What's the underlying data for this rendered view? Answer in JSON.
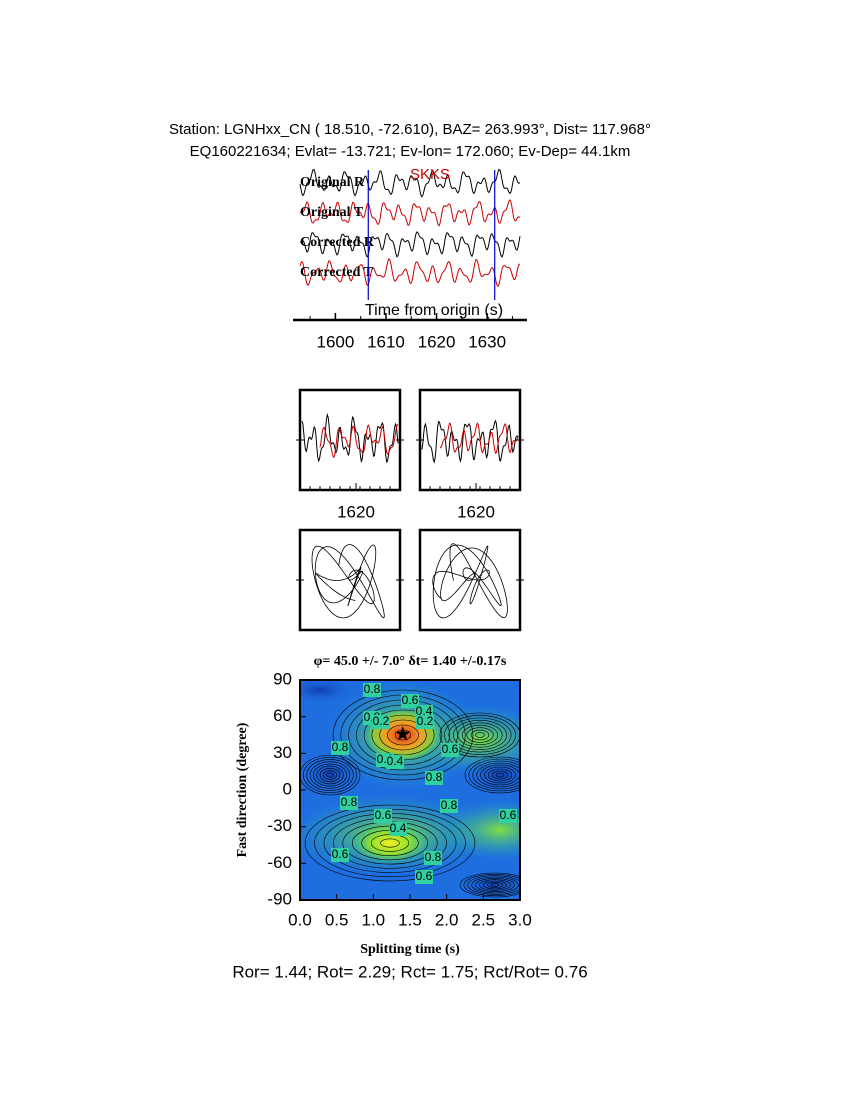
{
  "header": {
    "line1": "Station: LGNHxx_CN (  18.510,  -72.610), BAZ=  263.993°, Dist=  117.968°",
    "line2": "EQ160221634; Evlat= -13.721; Ev-lon= 172.060; Ev-Dep= 44.1km"
  },
  "chart_data": [
    {
      "type": "seismogram",
      "phase_label": "SKKS",
      "x_label": "Time from origin (s)",
      "traces": [
        {
          "name": "Original R",
          "color": "#000000"
        },
        {
          "name": "Original T",
          "color": "#cc0000"
        },
        {
          "name": "Corrected R",
          "color": "#000000"
        },
        {
          "name": "Corrected T",
          "color": "#cc0000"
        }
      ],
      "window": [
        1606.5,
        1631.5
      ],
      "window_color": "#0000cc",
      "xlim": [
        1593,
        1636.5
      ],
      "xticks": [
        1600,
        1610,
        1620,
        1630
      ]
    },
    {
      "type": "waveform-window",
      "colors": [
        "#000000",
        "#cc0000"
      ],
      "xticks": [
        1620
      ]
    },
    {
      "type": "waveform-window",
      "colors": [
        "#000000",
        "#cc0000"
      ],
      "xticks": [
        1620
      ]
    },
    {
      "type": "particle-motion"
    },
    {
      "type": "particle-motion"
    },
    {
      "type": "contour",
      "title": "φ= 45.0 +/- 7.0° δt= 1.40 +/-0.17s",
      "x_label": "Splitting time (s)",
      "y_label": "Fast direction (degree)",
      "xlim": [
        0,
        3
      ],
      "xticks": [
        {
          "value": 0,
          "label": "0.0"
        },
        {
          "value": 0.5,
          "label": "0.5"
        },
        {
          "value": 1,
          "label": "1.0"
        },
        {
          "value": 1.5,
          "label": "1.5"
        },
        {
          "value": 2,
          "label": "2.0"
        },
        {
          "value": 2.5,
          "label": "2.5"
        },
        {
          "value": 3,
          "label": "3.0"
        }
      ],
      "ylim": [
        -90,
        90
      ],
      "yticks": [
        -90,
        -60,
        -30,
        0,
        30,
        60,
        90
      ],
      "best": {
        "x": 1.4,
        "y": 45.0
      },
      "contour_labels": [
        0.8,
        0.6,
        0.4,
        0.2,
        0.2,
        0.8,
        0.8,
        0.6,
        0.4,
        0.8,
        0.8,
        0.8,
        0.6,
        0.4,
        0.6,
        0.6,
        0.6,
        0.8,
        0.6
      ]
    }
  ],
  "footer": "Ror= 1.44; Rot= 2.29; Rct= 1.75; Rct/Rot= 0.76"
}
